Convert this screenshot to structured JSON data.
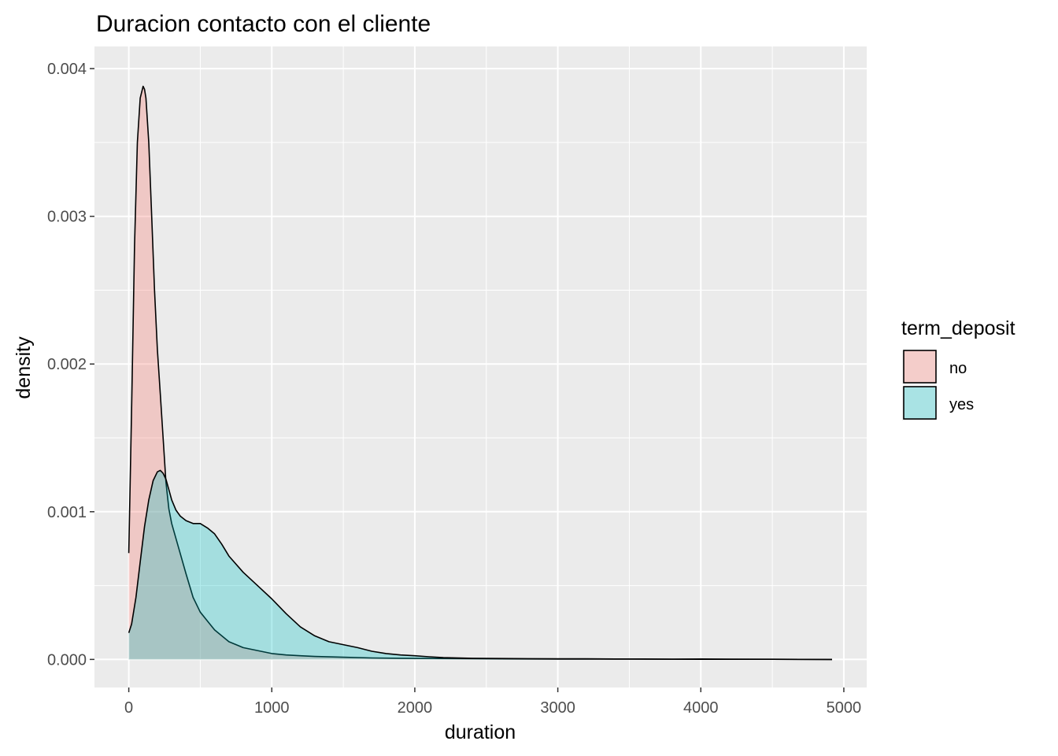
{
  "chart_data": {
    "type": "area",
    "title": "Duracion contacto con el cliente",
    "xlabel": "duration",
    "ylabel": "density",
    "xlim": [
      -240,
      5160
    ],
    "ylim": [
      -0.00019,
      0.00415
    ],
    "x_ticks": [
      0,
      1000,
      2000,
      3000,
      4000,
      5000
    ],
    "x_tick_labels": [
      "0",
      "1000",
      "2000",
      "3000",
      "4000",
      "5000"
    ],
    "y_ticks": [
      0.0,
      0.001,
      0.002,
      0.003,
      0.004
    ],
    "y_tick_labels": [
      "0.000",
      "0.001",
      "0.002",
      "0.003",
      "0.004"
    ],
    "grid": true,
    "panel_background": "#ebebeb",
    "legend": {
      "title": "term_deposit",
      "placement": "right",
      "entries": [
        "no",
        "yes"
      ]
    },
    "series": [
      {
        "name": "no",
        "color": "#f8766d",
        "fill_alpha": 0.3,
        "x": [
          0,
          20,
          40,
          60,
          80,
          100,
          110,
          120,
          140,
          160,
          180,
          200,
          220,
          240,
          260,
          280,
          300,
          350,
          400,
          450,
          500,
          550,
          600,
          650,
          700,
          750,
          800,
          900,
          1000,
          1100,
          1200,
          1300,
          1500,
          1700,
          2000,
          2500,
          3000,
          3500,
          4000,
          4500,
          4918
        ],
        "y": [
          0.00072,
          0.0017,
          0.0028,
          0.0035,
          0.0038,
          0.00388,
          0.00386,
          0.0038,
          0.0035,
          0.003,
          0.0025,
          0.0021,
          0.0018,
          0.0015,
          0.0012,
          0.00102,
          0.00092,
          0.00075,
          0.00058,
          0.00042,
          0.00032,
          0.00026,
          0.0002,
          0.00016,
          0.00012,
          0.0001,
          8e-05,
          6e-05,
          4e-05,
          3e-05,
          2.5e-05,
          2e-05,
          1.5e-05,
          1e-05,
          7e-06,
          4e-06,
          2e-06,
          2e-06,
          1e-06,
          1e-06,
          0.0
        ]
      },
      {
        "name": "yes",
        "color": "#00bfc4",
        "fill_alpha": 0.3,
        "x": [
          0,
          20,
          50,
          80,
          110,
          140,
          170,
          200,
          220,
          240,
          260,
          280,
          300,
          330,
          360,
          400,
          450,
          500,
          550,
          600,
          650,
          700,
          800,
          900,
          1000,
          1100,
          1200,
          1300,
          1400,
          1500,
          1600,
          1700,
          1800,
          1900,
          2000,
          2100,
          2200,
          2400,
          2600,
          2800,
          3000,
          3200,
          3400,
          3600,
          3800,
          4000,
          4200,
          4500,
          4918
        ],
        "y": [
          0.00018,
          0.00024,
          0.00042,
          0.00066,
          0.0009,
          0.00108,
          0.00121,
          0.00127,
          0.00128,
          0.00126,
          0.00122,
          0.00115,
          0.00108,
          0.00101,
          0.00097,
          0.00094,
          0.00092,
          0.00092,
          0.00089,
          0.00085,
          0.00078,
          0.0007,
          0.00059,
          0.0005,
          0.00041,
          0.00031,
          0.00022,
          0.00016,
          0.00012,
          0.0001,
          8e-05,
          5.5e-05,
          4e-05,
          3e-05,
          2.5e-05,
          1.8e-05,
          1.2e-05,
          8e-06,
          6e-06,
          5e-06,
          4e-06,
          4e-06,
          3e-06,
          3e-06,
          2e-06,
          3e-06,
          2e-06,
          1e-06,
          0.0
        ]
      }
    ]
  }
}
